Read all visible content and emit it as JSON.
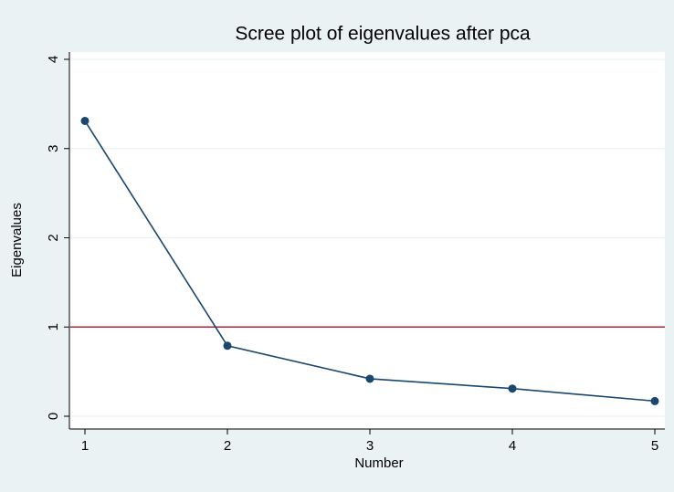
{
  "chart_data": {
    "type": "line",
    "title": "Scree plot of eigenvalues after pca",
    "x_label": "Number",
    "y_label": "Eigenvalues",
    "x": [
      1,
      2,
      3,
      4,
      5
    ],
    "series": [
      {
        "color": "#1a476f",
        "values": [
          3.31,
          0.79,
          0.42,
          0.31,
          0.17
        ]
      }
    ],
    "xlim": [
      1,
      5
    ],
    "xticks": [
      1,
      2,
      3,
      4,
      5
    ],
    "ylim": [
      0,
      4
    ],
    "yticks": [
      0,
      1,
      2,
      3,
      4
    ],
    "grid": true,
    "reference_line": {
      "value": 1,
      "color": "#b0243a"
    }
  }
}
